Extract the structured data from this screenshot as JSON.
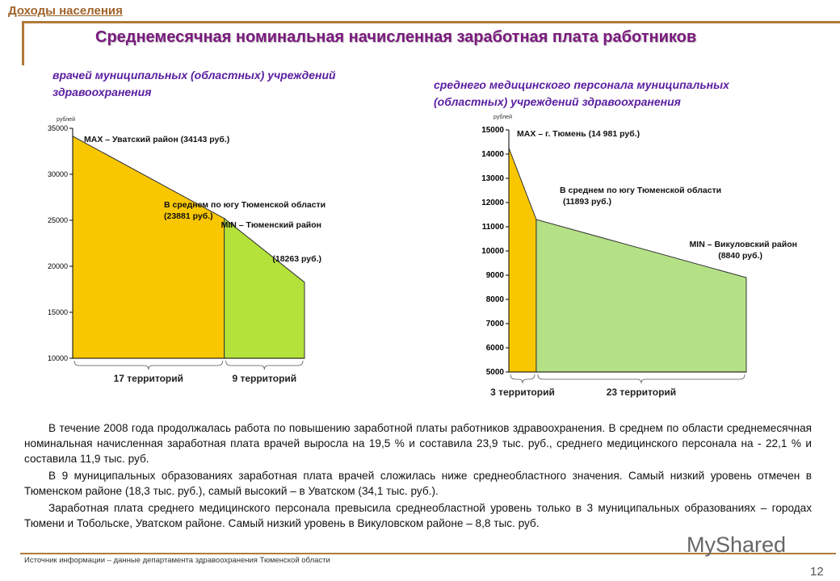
{
  "header": {
    "section": "Доходы населения",
    "title": "Среднемесячная номинальная начисленная заработная плата работников"
  },
  "chart_data": [
    {
      "type": "area",
      "subtitle": "врачей муниципальных (областных) учреждений здравоохранения",
      "ylabel": "рублей",
      "ylim": [
        10000,
        35000
      ],
      "yticks": [
        10000,
        15000,
        20000,
        25000,
        30000,
        35000
      ],
      "grid": false,
      "points": [
        {
          "x": 0,
          "y": 34143
        },
        {
          "x": 17,
          "y": 25200
        },
        {
          "x": 26,
          "y": 18263
        }
      ],
      "segments": [
        {
          "label": "17 территорий",
          "from": 0,
          "to": 17,
          "color": "#f9c700"
        },
        {
          "label": "9 территорий",
          "from": 17,
          "to": 26,
          "color": "#b4e23a"
        }
      ],
      "annotations": {
        "max": "MAX – Уватский район (34143 руб.)",
        "avg1": "В среднем по югу Тюменской области",
        "avg2": "(23881 руб.)",
        "min1": "MIN – Тюменский район",
        "min2": "(18263 руб.)"
      }
    },
    {
      "type": "area",
      "subtitle": "среднего медицинского персонала муниципальных (областных) учреждений здравоохранения",
      "ylabel": "рублей",
      "ylim": [
        5000,
        15000
      ],
      "yticks": [
        5000,
        6000,
        7000,
        8000,
        9000,
        10000,
        11000,
        12000,
        13000,
        14000,
        15000
      ],
      "grid": false,
      "points": [
        {
          "x": 0,
          "y": 14250
        },
        {
          "x": 3,
          "y": 11300
        },
        {
          "x": 26,
          "y": 8900
        }
      ],
      "segments": [
        {
          "label": "3 территорий",
          "from": 0,
          "to": 3,
          "color": "#f9c700"
        },
        {
          "label": "23 территорий",
          "from": 3,
          "to": 26,
          "color": "#b5e186"
        }
      ],
      "annotations": {
        "max": "MAX – г. Тюмень (14 981 руб.)",
        "avg1": "В среднем по югу Тюменской области",
        "avg2": "(11893 руб.)",
        "min1": "MIN – Викуловский район",
        "min2": "(8840 руб.)"
      }
    }
  ],
  "body": [
    "В течение 2008  года продолжалась работа по повышению заработной платы работников здравоохранения. В среднем по области среднемесячная номинальная начисленная заработная плата врачей выросла на 19,5 % и составила 23,9 тыс. руб., среднего медицинского персонала на - 22,1 % и составила 11,9 тыс. руб.",
    "В  9 муниципальных образованиях заработная плата врачей сложилась ниже среднеобластного значения. Самый низкий уровень отмечен в Тюменском районе (18,3 тыс. руб.), самый высокий – в Уватском  (34,1 тыс. руб.).",
    "Заработная плата среднего медицинского персонала превысила среднеобластной уровень только в 3 муниципальных образованиях – городах Тюмени и Тобольске, Уватском районе. Самый низкий уровень в Викуловском районе – 8,8 тыс. руб."
  ],
  "footer": {
    "source": "Источник информации – данные департамента здравоохранения Тюменской области",
    "page": "12",
    "watermark": "MyShared"
  }
}
